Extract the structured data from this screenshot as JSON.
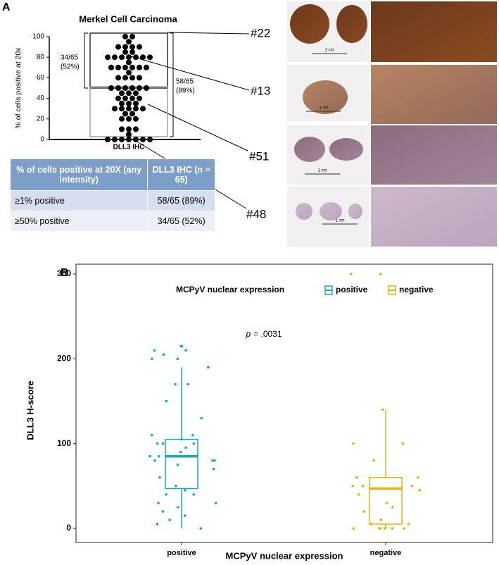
{
  "panel_labels": [
    "A",
    "B"
  ],
  "images": {
    "labels": [
      "#22",
      "#13",
      "#51",
      "#48"
    ],
    "scale_bar": "1 cm"
  },
  "table": {
    "header": [
      "% of cells positive at 20X (any intensity)",
      "DLL3 IHC (n = 65)"
    ],
    "rows": [
      [
        "≥1% positive",
        "58/65 (89%)"
      ],
      [
        "≥50% positive",
        "34/65 (52%)"
      ]
    ]
  },
  "chart_data": [
    {
      "type": "strip",
      "title": "Merkel Cell  Carcinoma",
      "y_label": "% of cells positive at 20x",
      "x_label": "DLL3 IHC",
      "ylim": [
        0,
        100
      ],
      "yticks": [
        0,
        20,
        40,
        60,
        80,
        100
      ],
      "color": "#000000",
      "values": [
        100,
        100,
        95,
        90,
        90,
        90,
        90,
        85,
        85,
        80,
        80,
        80,
        80,
        80,
        80,
        80,
        75,
        70,
        70,
        70,
        70,
        70,
        70,
        65,
        60,
        60,
        60,
        60,
        50,
        50,
        50,
        50,
        50,
        50,
        45,
        45,
        45,
        40,
        40,
        40,
        40,
        35,
        35,
        35,
        30,
        30,
        30,
        30,
        30,
        25,
        25,
        20,
        20,
        20,
        10,
        10,
        10,
        5,
        0,
        0,
        0,
        0,
        0,
        0,
        0
      ],
      "annotations": [
        [
          "34/65",
          "(52%)"
        ],
        [
          "58/65",
          "(89%)"
        ]
      ]
    },
    {
      "type": "box",
      "legend_title": "MCPyV nuclear expression",
      "x_label": "MCPyV nuclear expression",
      "y_label": "DLL3 H-score",
      "annotation_italic": "p",
      "annotation": "= .0031",
      "categories": [
        "positive",
        "negative"
      ],
      "ylim": [
        -16.6,
        311.6
      ],
      "yticks": [
        0,
        100,
        200,
        300
      ],
      "series": [
        {
          "name": "positive",
          "color": "#1ba7b8",
          "min": 0,
          "q1": 47,
          "median": 85,
          "q3": 105,
          "max": 190,
          "points": [
            215,
            210,
            210,
            205,
            200,
            215,
            200,
            190,
            170,
            170,
            150,
            130,
            110,
            110,
            105,
            100,
            100,
            100,
            95,
            90,
            85,
            85,
            80,
            80,
            80,
            75,
            70,
            60,
            50,
            45,
            40,
            40,
            30,
            30,
            25,
            20,
            15,
            10,
            5,
            0
          ]
        },
        {
          "name": "negative",
          "color": "#e3b10c",
          "min": 0,
          "q1": 5,
          "median": 47,
          "q3": 60,
          "max": 140,
          "points": [
            300,
            300,
            140,
            100,
            100,
            80,
            60,
            60,
            50,
            50,
            50,
            45,
            40,
            30,
            25,
            20,
            10,
            5,
            5,
            0,
            0,
            0,
            0,
            0,
            0
          ]
        }
      ]
    }
  ]
}
